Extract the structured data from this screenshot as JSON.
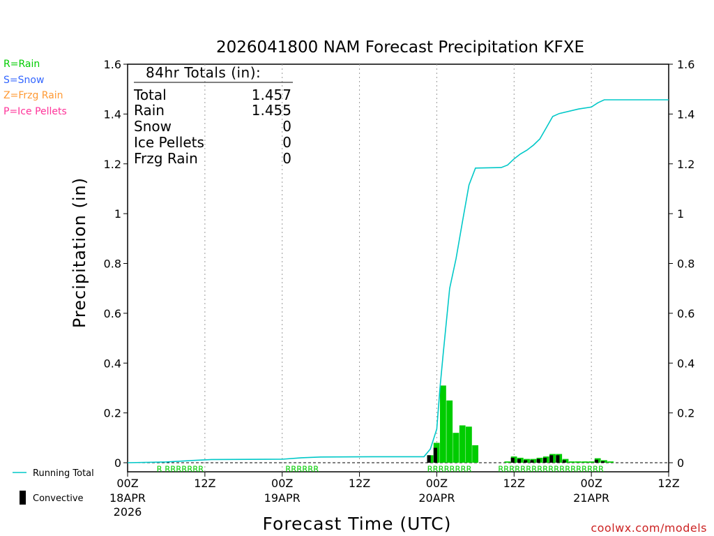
{
  "chart_data": {
    "type": "bar",
    "title": "2026041800 NAM Forecast Precipitation KFXE",
    "xlabel": "Forecast Time (UTC)",
    "ylabel": "Precipitation (in)",
    "ylim": [
      0,
      1.6
    ],
    "xlim_hours": [
      0,
      84
    ],
    "y_ticks": [
      "0",
      "0.2",
      "0.4",
      "0.6",
      "0.8",
      "1",
      "1.2",
      "1.4",
      "1.6"
    ],
    "x_ticks": [
      {
        "hour": 0,
        "top": "00Z",
        "mid": "18APR",
        "bottom": "2026"
      },
      {
        "hour": 12,
        "top": "12Z",
        "mid": "",
        "bottom": ""
      },
      {
        "hour": 24,
        "top": "00Z",
        "mid": "19APR",
        "bottom": ""
      },
      {
        "hour": 36,
        "top": "12Z",
        "mid": "",
        "bottom": ""
      },
      {
        "hour": 48,
        "top": "00Z",
        "mid": "20APR",
        "bottom": ""
      },
      {
        "hour": 60,
        "top": "12Z",
        "mid": "",
        "bottom": ""
      },
      {
        "hour": 72,
        "top": "00Z",
        "mid": "21APR",
        "bottom": ""
      },
      {
        "hour": 84,
        "top": "12Z",
        "mid": "",
        "bottom": ""
      }
    ],
    "series": [
      {
        "name": "Hourly precip (Rain)",
        "color": "#00cc00",
        "points": [
          [
            47,
            0.03
          ],
          [
            48,
            0.08
          ],
          [
            49,
            0.31
          ],
          [
            50,
            0.25
          ],
          [
            51,
            0.12
          ],
          [
            52,
            0.15
          ],
          [
            53,
            0.145
          ],
          [
            54,
            0.07
          ],
          [
            59,
            0.005
          ],
          [
            60,
            0.025
          ],
          [
            61,
            0.02
          ],
          [
            62,
            0.015
          ],
          [
            63,
            0.015
          ],
          [
            64,
            0.02
          ],
          [
            65,
            0.025
          ],
          [
            66,
            0.035
          ],
          [
            67,
            0.035
          ],
          [
            68,
            0.015
          ],
          [
            69,
            0.005
          ],
          [
            70,
            0.005
          ],
          [
            71,
            0.005
          ],
          [
            72,
            0.005
          ],
          [
            73,
            0.018
          ],
          [
            74,
            0.01
          ],
          [
            75,
            0.005
          ]
        ]
      },
      {
        "name": "Convective",
        "color": "#000000",
        "points": [
          [
            47,
            0.03
          ],
          [
            48,
            0.06
          ],
          [
            60,
            0.02
          ],
          [
            61,
            0.015
          ],
          [
            62,
            0.01
          ],
          [
            63,
            0.01
          ],
          [
            64,
            0.015
          ],
          [
            65,
            0.02
          ],
          [
            66,
            0.03
          ],
          [
            67,
            0.03
          ],
          [
            68,
            0.01
          ],
          [
            73,
            0.012
          ],
          [
            74,
            0.006
          ]
        ]
      },
      {
        "name": "Running Total",
        "color": "#00c8c8",
        "points": [
          [
            0,
            0
          ],
          [
            6,
            0.003
          ],
          [
            10,
            0.009
          ],
          [
            13,
            0.013
          ],
          [
            24,
            0.014
          ],
          [
            27,
            0.02
          ],
          [
            30,
            0.023
          ],
          [
            38,
            0.024
          ],
          [
            46,
            0.024
          ],
          [
            47,
            0.055
          ],
          [
            48,
            0.135
          ],
          [
            48.5,
            0.3
          ],
          [
            49,
            0.44
          ],
          [
            50,
            0.7
          ],
          [
            51,
            0.82
          ],
          [
            52,
            0.97
          ],
          [
            53,
            1.115
          ],
          [
            54,
            1.183
          ],
          [
            58,
            1.185
          ],
          [
            59,
            1.195
          ],
          [
            60,
            1.22
          ],
          [
            61,
            1.24
          ],
          [
            62,
            1.255
          ],
          [
            63,
            1.275
          ],
          [
            64,
            1.3
          ],
          [
            65,
            1.345
          ],
          [
            66,
            1.39
          ],
          [
            67,
            1.402
          ],
          [
            70,
            1.42
          ],
          [
            72,
            1.428
          ],
          [
            73,
            1.445
          ],
          [
            74,
            1.457
          ],
          [
            84,
            1.457
          ]
        ]
      }
    ],
    "precip_type_codes": [
      {
        "text": "R RRRRRRR",
        "start_hour": 5
      },
      {
        "text": "RRRRRR",
        "start_hour": 25
      },
      {
        "text": "RRRRRRRR",
        "start_hour": 47
      },
      {
        "text": "RRRRRRRRRRRRRRRRRRR",
        "start_hour": 58
      }
    ],
    "totals": {
      "heading": "84hr Totals (in):",
      "rows": [
        {
          "label": "Total",
          "value": "1.457"
        },
        {
          "label": "Rain",
          "value": "1.455"
        },
        {
          "label": "Snow",
          "value": "0"
        },
        {
          "label": "Ice Pellets",
          "value": "0"
        },
        {
          "label": "Frzg Rain",
          "value": "0"
        }
      ]
    },
    "type_legend": [
      {
        "text": "R=Rain",
        "color": "#00cc00"
      },
      {
        "text": "S=Snow",
        "color": "#3366ff"
      },
      {
        "text": "Z=Frzg Rain",
        "color": "#ff9933"
      },
      {
        "text": "P=Ice Pellets",
        "color": "#ff3399"
      }
    ],
    "series_legend": [
      {
        "text": "Running Total",
        "color": "#00c8c8"
      },
      {
        "text": "Convective",
        "color": "#000000"
      }
    ],
    "credit": "coolwx.com/models"
  }
}
